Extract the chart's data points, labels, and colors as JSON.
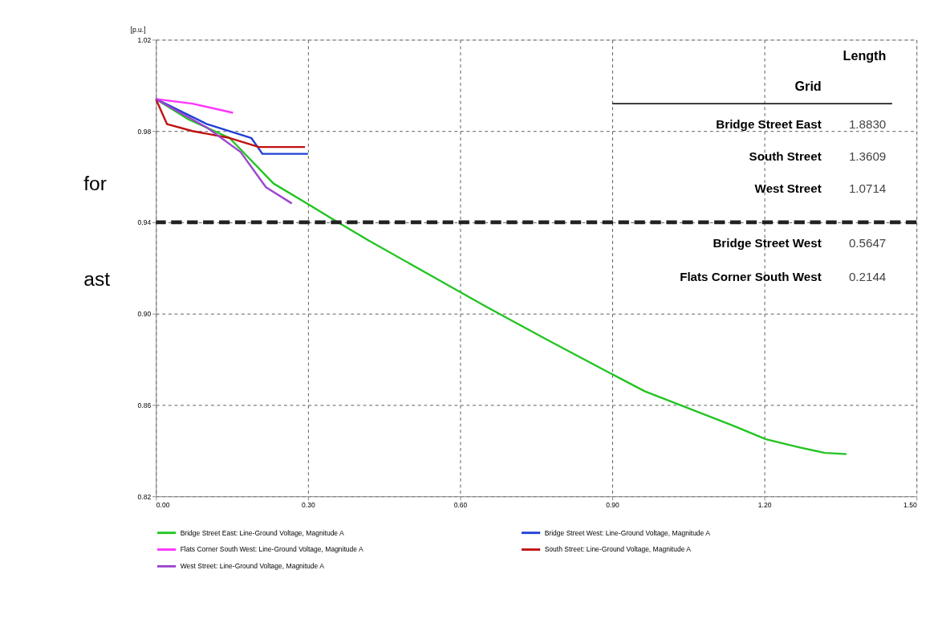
{
  "chart_data": {
    "type": "line",
    "ylabel": "[p.u.]",
    "xlim": [
      0,
      1.5
    ],
    "xticks": [
      {
        "value": 0,
        "label": "0.00"
      },
      {
        "value": 0.3,
        "label": "0.30"
      },
      {
        "value": 0.6,
        "label": "0.60"
      },
      {
        "value": 0.9,
        "label": "0.90"
      },
      {
        "value": 1.2,
        "label": "1.20"
      },
      {
        "value": 1.5,
        "label": "1.50"
      }
    ],
    "ylim": [
      0.82,
      1.02
    ],
    "yticks": [
      0.82,
      0.86,
      {
        "value": 0.9,
        "label": "0.90"
      },
      0.94,
      0.98,
      1.02
    ],
    "grid": true,
    "legend": "bottom",
    "line_style": "solid",
    "ref_lines": [
      {
        "axis": "y",
        "value": 0.94,
        "label": null,
        "color": "#222222",
        "line_style": "dashed"
      }
    ],
    "annotations": [
      "for",
      "ast",
      "Length",
      "Grid",
      "Bridge Street East",
      "1.8830",
      "South Street",
      "1.3609",
      "West Street",
      "1.0714",
      "Bridge Street West",
      "0.5647",
      "Flats Corner South West",
      "0.2144"
    ],
    "series": [
      {
        "name": "Bridge Street East: Line-Ground Voltage, Magnitude A",
        "color": "#22c422",
        "x": [
          0,
          0.065,
          0.145,
          0.232,
          0.3,
          0.348,
          0.42,
          0.536,
          0.652,
          0.768,
          0.891,
          0.964,
          1.022,
          1.08,
          1.138,
          1.203,
          1.268,
          1.319,
          1.362
        ],
        "values": [
          0.994,
          0.985,
          0.977,
          0.957,
          0.948,
          0.9415,
          0.932,
          0.9175,
          0.903,
          0.889,
          0.8745,
          0.866,
          0.861,
          0.856,
          0.851,
          0.845,
          0.8415,
          0.839,
          0.8385
        ]
      },
      {
        "name": "Bridge Street West: Line-Ground Voltage, Magnitude A",
        "color": "#1f3fd6",
        "x": [
          0,
          0.101,
          0.188,
          0.21,
          0.3
        ],
        "values": [
          0.994,
          0.983,
          0.977,
          0.97,
          0.97
        ]
      },
      {
        "name": "Flats Corner South West: Line-Ground Voltage, Magnitude A",
        "color": "#ff33ff",
        "x": [
          0,
          0.072,
          0.152
        ],
        "values": [
          0.994,
          0.992,
          0.988
        ]
      },
      {
        "name": "South Street: Line-Ground Voltage, Magnitude A",
        "color": "#c01010",
        "x": [
          0,
          0.022,
          0.072,
          0.145,
          0.203,
          0.294
        ],
        "values": [
          0.994,
          0.983,
          0.98,
          0.977,
          0.973,
          0.973
        ]
      },
      {
        "name": "West Street: Line-Ground Voltage, Magnitude A",
        "color": "#9b45d0",
        "x": [
          0,
          0.101,
          0.167,
          0.217,
          0.268
        ],
        "values": [
          0.994,
          0.9815,
          0.9708,
          0.9554,
          0.9483
        ]
      }
    ]
  }
}
